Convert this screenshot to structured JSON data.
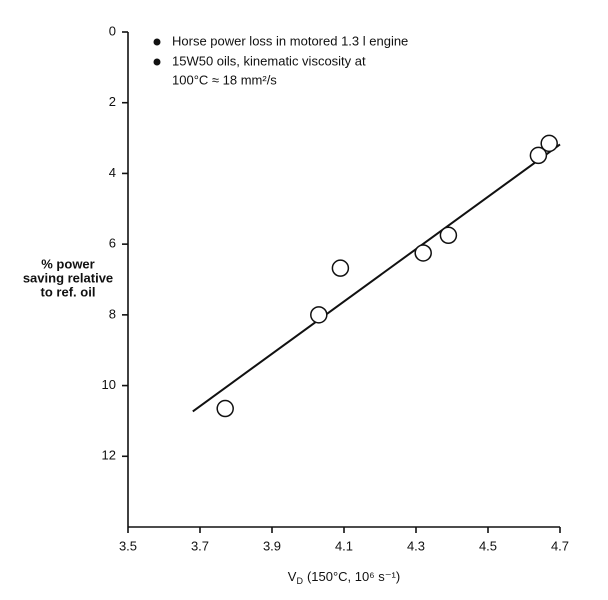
{
  "chart_data": {
    "type": "scatter",
    "annotations": [
      "Horse power loss in motored 1.3 l engine",
      "15W50 oils, kinematic viscosity at",
      "100°C ≈ 18 mm²/s"
    ],
    "y_label": [
      "% power",
      "saving relative",
      "to ref. oil"
    ],
    "x_label": {
      "symbol": "V",
      "subscript": "D",
      "rest": "(150°C, 10⁶ s⁻¹)"
    },
    "xlim": [
      3.5,
      4.7
    ],
    "xticks": [
      3.5,
      3.7,
      3.9,
      4.1,
      4.3,
      4.5,
      4.7
    ],
    "ylim": [
      0,
      14
    ],
    "yticks": [
      0,
      2,
      4,
      6,
      8,
      10,
      12
    ],
    "y_inverted": true,
    "series": [
      {
        "color": "#111111",
        "x": [
          3.77,
          4.03,
          4.09,
          4.32,
          4.39,
          4.64,
          4.67
        ],
        "y": [
          10.65,
          8.0,
          6.68,
          6.25,
          5.75,
          3.49,
          3.15
        ]
      }
    ],
    "fit_line": {
      "x": [
        3.68,
        4.7
      ],
      "y": [
        10.73,
        3.18
      ],
      "color": "#111111"
    }
  }
}
